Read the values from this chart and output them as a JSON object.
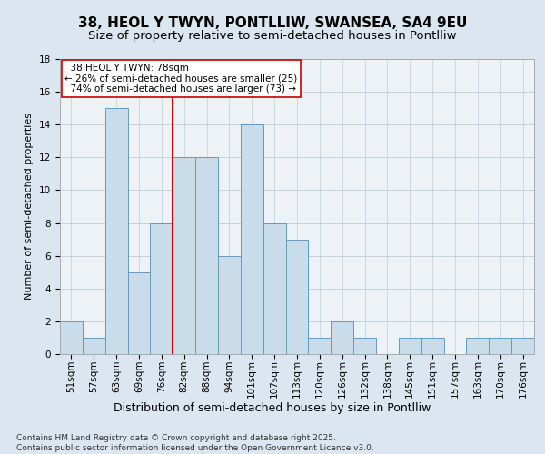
{
  "title": "38, HEOL Y TWYN, PONTLLIW, SWANSEA, SA4 9EU",
  "subtitle": "Size of property relative to semi-detached houses in Pontlliw",
  "xlabel": "Distribution of semi-detached houses by size in Pontlliw",
  "ylabel": "Number of semi-detached properties",
  "categories": [
    "51sqm",
    "57sqm",
    "63sqm",
    "69sqm",
    "76sqm",
    "82sqm",
    "88sqm",
    "94sqm",
    "101sqm",
    "107sqm",
    "113sqm",
    "120sqm",
    "126sqm",
    "132sqm",
    "138sqm",
    "145sqm",
    "151sqm",
    "157sqm",
    "163sqm",
    "170sqm",
    "176sqm"
  ],
  "values": [
    2,
    1,
    15,
    5,
    8,
    12,
    12,
    6,
    14,
    8,
    7,
    1,
    2,
    1,
    0,
    1,
    1,
    0,
    1,
    1,
    1
  ],
  "bar_color": "#c9dcea",
  "bar_edge_color": "#6699bb",
  "vline_x": 4.5,
  "vline_color": "#cc0000",
  "annotation_text": "  38 HEOL Y TWYN: 78sqm\n← 26% of semi-detached houses are smaller (25)\n  74% of semi-detached houses are larger (73) →",
  "annotation_box_color": "#ffffff",
  "annotation_box_edge": "#cc0000",
  "ylim": [
    0,
    18
  ],
  "yticks": [
    0,
    2,
    4,
    6,
    8,
    10,
    12,
    14,
    16,
    18
  ],
  "background_color": "#dce6f0",
  "plot_background": "#edf2f7",
  "footer": "Contains HM Land Registry data © Crown copyright and database right 2025.\nContains public sector information licensed under the Open Government Licence v3.0.",
  "title_fontsize": 11,
  "subtitle_fontsize": 9.5,
  "xlabel_fontsize": 9,
  "ylabel_fontsize": 8,
  "tick_fontsize": 7.5,
  "footer_fontsize": 6.5,
  "annotation_fontsize": 7.5
}
